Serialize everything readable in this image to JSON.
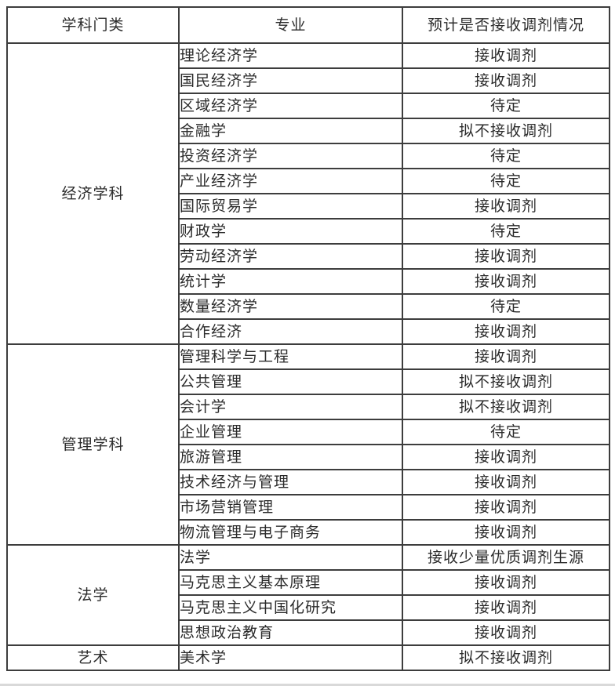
{
  "table": {
    "headers": [
      "学科门类",
      "专业",
      "预计是否接收调剂情况"
    ],
    "groups": [
      {
        "category": "经济学科",
        "rows": [
          {
            "major": "理论经济学",
            "status": "接收调剂"
          },
          {
            "major": "国民经济学",
            "status": "接收调剂"
          },
          {
            "major": "区域经济学",
            "status": "待定"
          },
          {
            "major": "金融学",
            "status": "拟不接收调剂"
          },
          {
            "major": "投资经济学",
            "status": "待定"
          },
          {
            "major": "产业经济学",
            "status": "待定"
          },
          {
            "major": "国际贸易学",
            "status": "接收调剂"
          },
          {
            "major": "财政学",
            "status": "待定"
          },
          {
            "major": "劳动经济学",
            "status": "接收调剂"
          },
          {
            "major": "统计学",
            "status": "接收调剂"
          },
          {
            "major": "数量经济学",
            "status": "待定"
          },
          {
            "major": "合作经济",
            "status": "接收调剂"
          }
        ]
      },
      {
        "category": "管理学科",
        "rows": [
          {
            "major": "管理科学与工程",
            "status": "接收调剂"
          },
          {
            "major": "公共管理",
            "status": "拟不接收调剂"
          },
          {
            "major": "会计学",
            "status": "拟不接收调剂"
          },
          {
            "major": "企业管理",
            "status": "待定"
          },
          {
            "major": "旅游管理",
            "status": "接收调剂"
          },
          {
            "major": "技术经济与管理",
            "status": "接收调剂"
          },
          {
            "major": "市场营销管理",
            "status": "接收调剂"
          },
          {
            "major": "物流管理与电子商务",
            "status": "接收调剂"
          }
        ]
      },
      {
        "category": "法学",
        "rows": [
          {
            "major": "法学",
            "status": "接收少量优质调剂生源"
          },
          {
            "major": "马克思主义基本原理",
            "status": "接收调剂"
          },
          {
            "major": "马克思主义中国化研究",
            "status": "接收调剂"
          },
          {
            "major": "思想政治教育",
            "status": "接收调剂"
          }
        ]
      },
      {
        "category": "艺术",
        "rows": [
          {
            "major": "美术学",
            "status": "拟不接收调剂"
          }
        ]
      }
    ],
    "colors": {
      "border": "#3d3d3d",
      "text": "#2b2b2b",
      "background": "#ffffff"
    }
  }
}
